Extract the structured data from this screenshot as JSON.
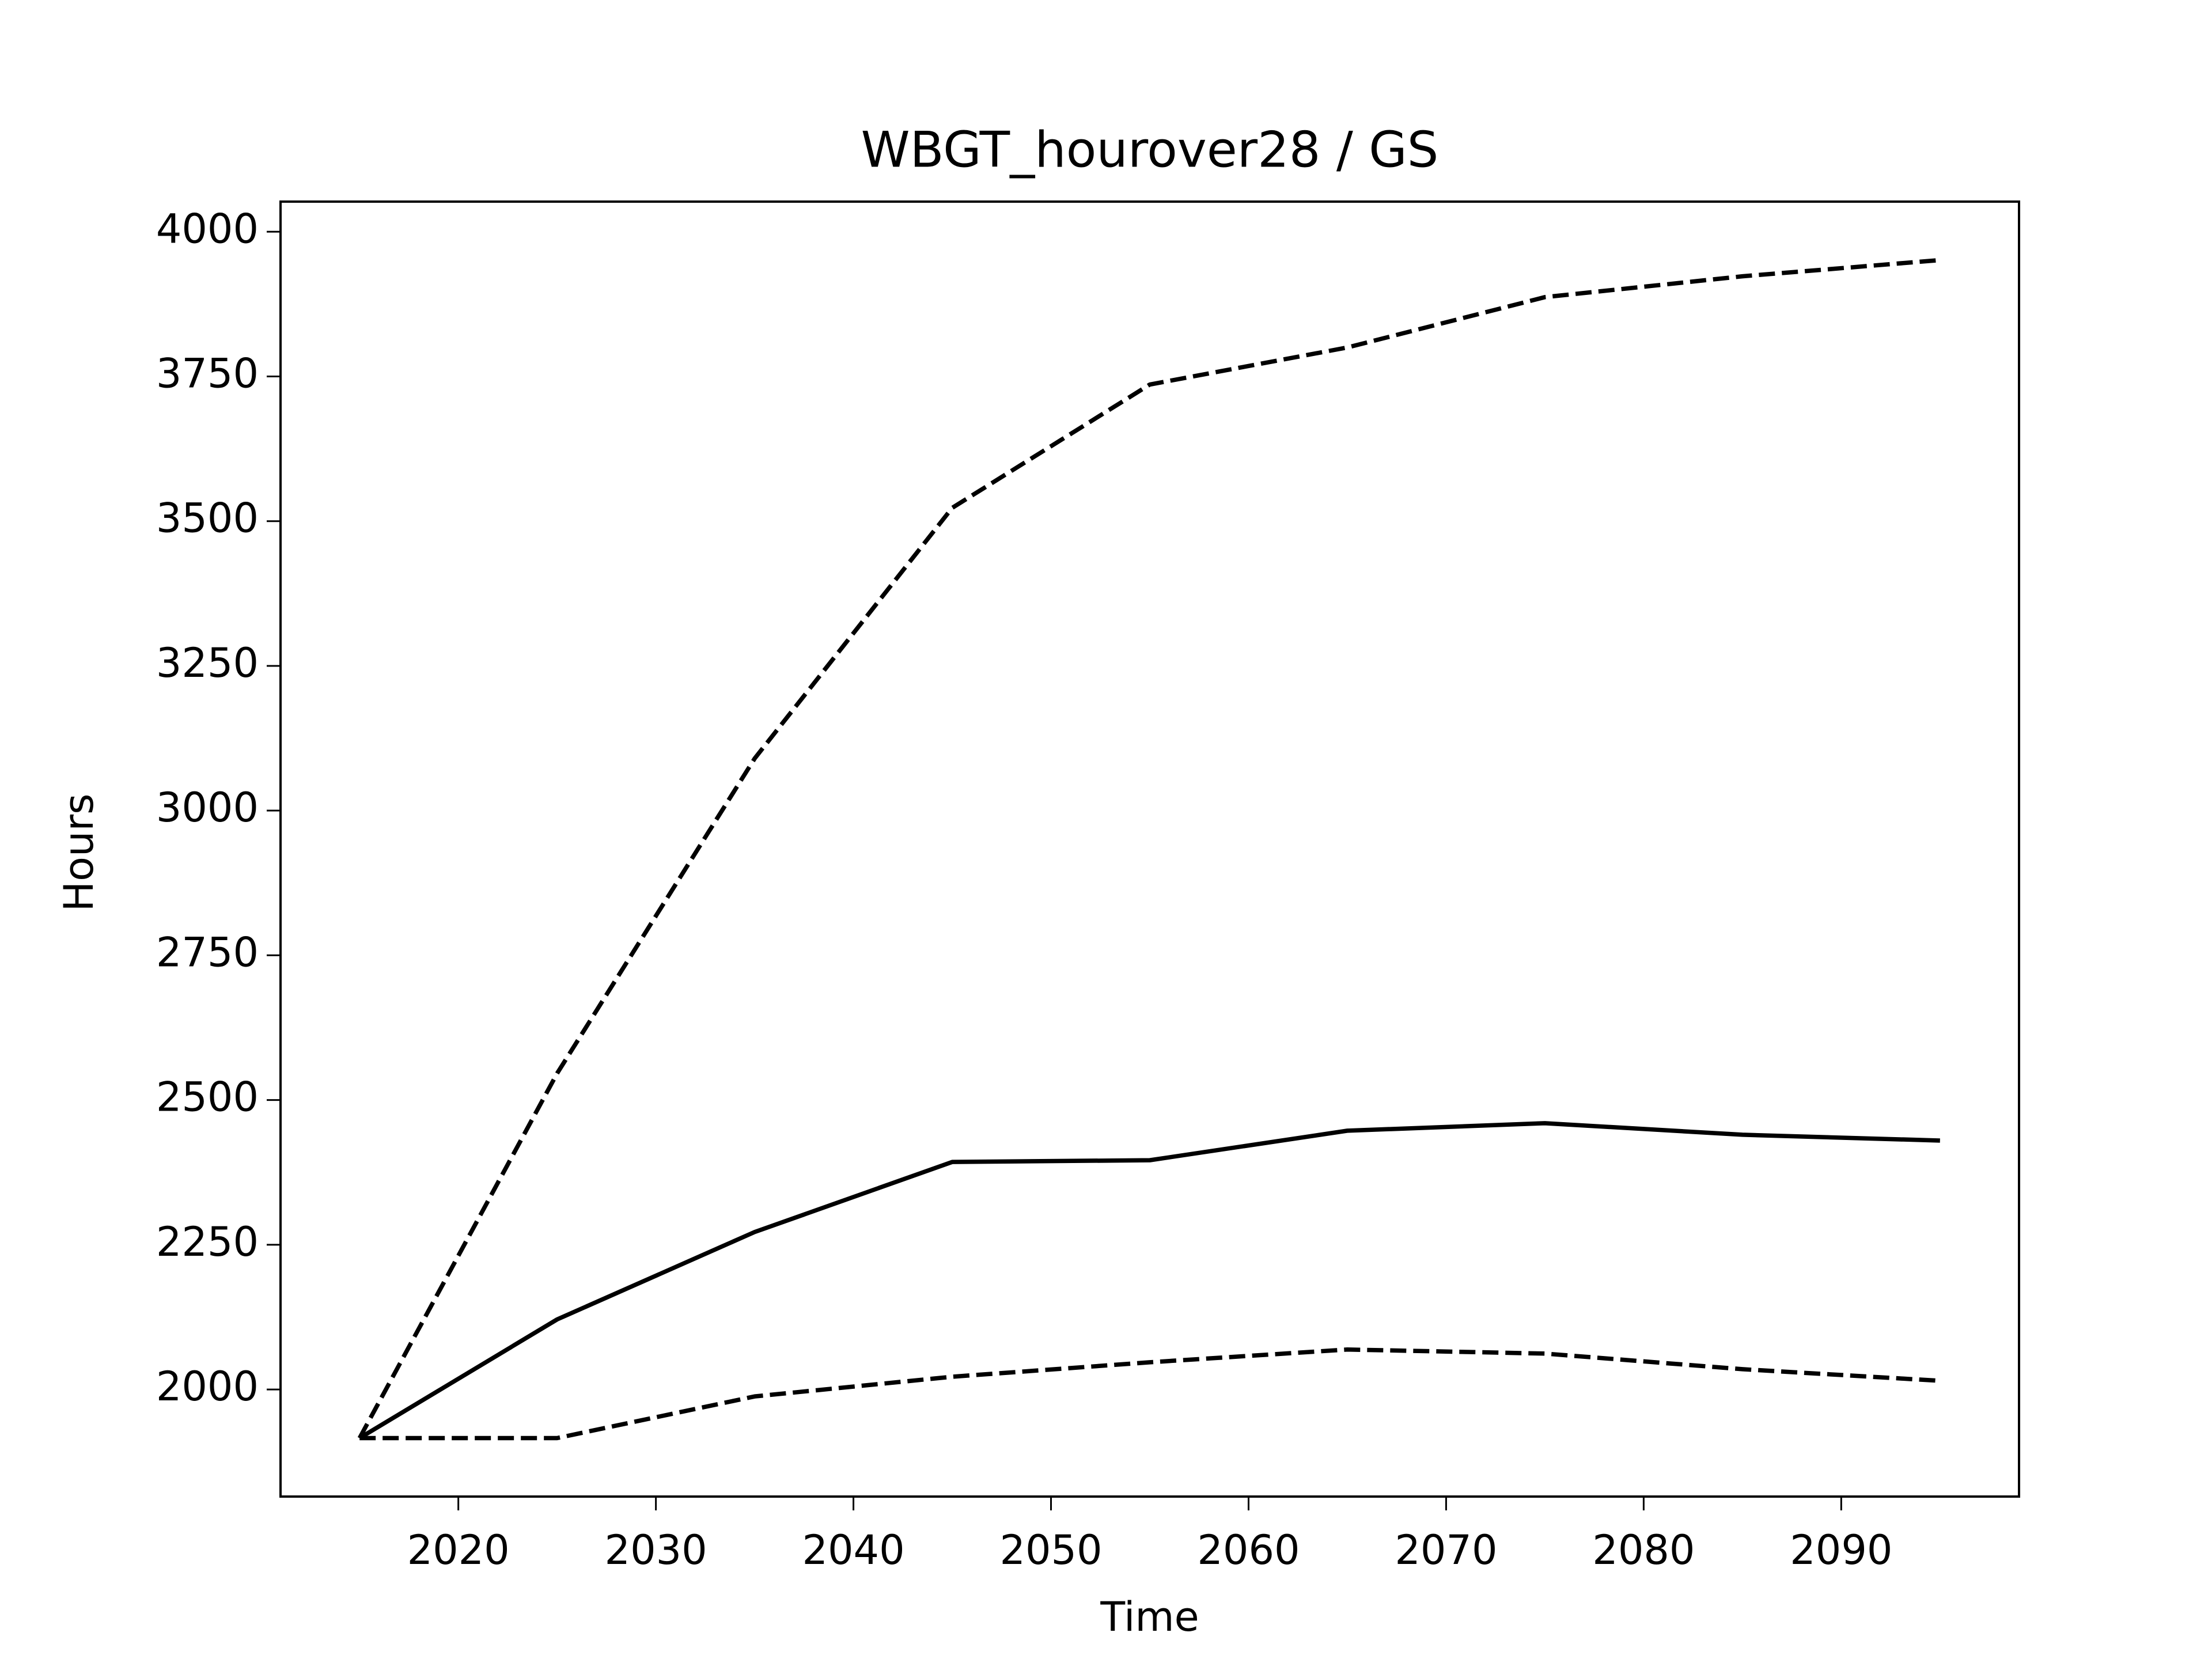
{
  "chart_data": {
    "type": "line",
    "title": "WBGT_hourover28 / GS",
    "xlabel": "Time",
    "ylabel": "Hours",
    "x": [
      2015,
      2025,
      2035,
      2045,
      2055,
      2065,
      2075,
      2085,
      2095
    ],
    "series": [
      {
        "color": "#000000",
        "linestyle": "solid",
        "values": [
          1916,
          2121,
          2272,
          2393,
          2396,
          2447,
          2460,
          2440,
          2430
        ]
      },
      {
        "color": "#000000",
        "linestyle": "dashed",
        "values": [
          1916,
          2546,
          3090,
          3523,
          3736,
          3800,
          3887,
          3923,
          3951
        ]
      },
      {
        "color": "#000000",
        "linestyle": "dashed",
        "values": [
          1916,
          1916,
          1988,
          2022,
          2047,
          2069,
          2062,
          2035,
          2015
        ]
      }
    ],
    "xlim": [
      2011,
      2099
    ],
    "xticks": [
      2020,
      2030,
      2040,
      2050,
      2060,
      2070,
      2080,
      2090
    ],
    "ylim": [
      1815,
      4052
    ],
    "yticks": [
      2000,
      2250,
      2500,
      2750,
      3000,
      3250,
      3500,
      3750,
      4000
    ],
    "grid": false
  }
}
